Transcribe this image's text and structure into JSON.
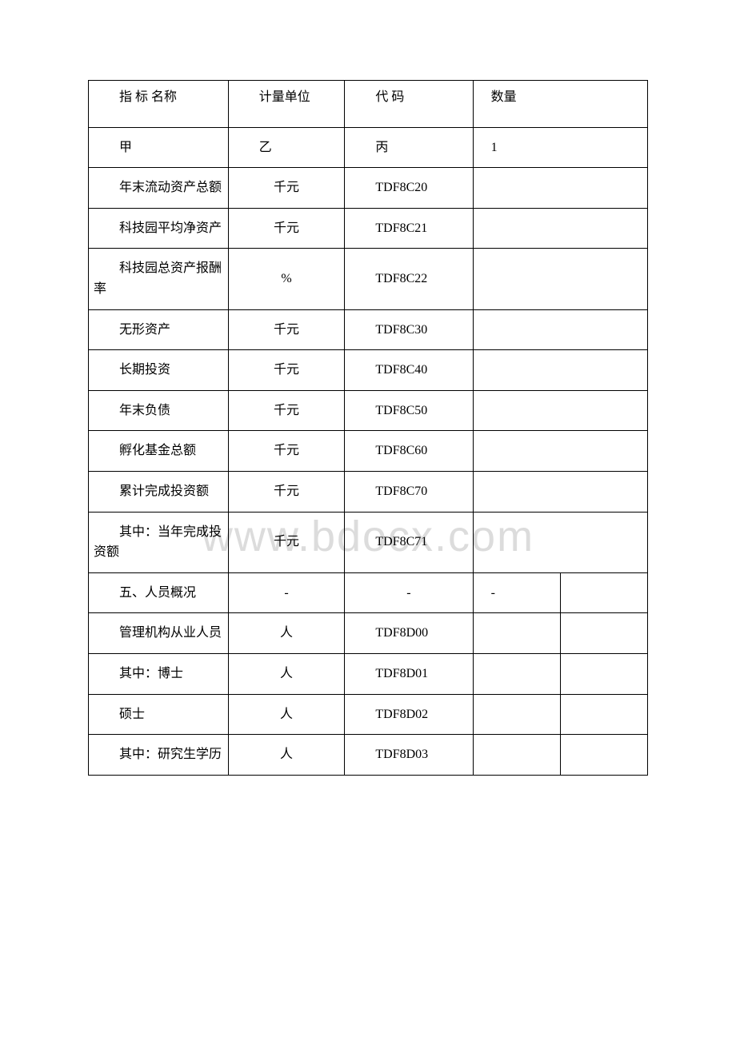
{
  "watermark": "www.bdocx.com",
  "table": {
    "header": {
      "c1": "指 标 名称",
      "c2": "计量单位",
      "c3": "代 码",
      "c4": "数量"
    },
    "subheader": {
      "c1": "甲",
      "c2": "乙",
      "c3": "丙",
      "c4": "1"
    },
    "rows": [
      {
        "name": "年末流动资产总额",
        "unit": "千元",
        "code": "TDF8C20",
        "qty": "",
        "extra": ""
      },
      {
        "name": "科技园平均净资产",
        "unit": "千元",
        "code": "TDF8C21",
        "qty": "",
        "extra": ""
      },
      {
        "name": "科技园总资产报酬率",
        "unit": "%",
        "code": "TDF8C22",
        "qty": "",
        "extra": ""
      },
      {
        "name": "无形资产",
        "unit": "千元",
        "code": "TDF8C30",
        "qty": "",
        "extra": ""
      },
      {
        "name": "长期投资",
        "unit": "千元",
        "code": "TDF8C40",
        "qty": "",
        "extra": ""
      },
      {
        "name": "年末负债",
        "unit": "千元",
        "code": "TDF8C50",
        "qty": "",
        "extra": ""
      },
      {
        "name": "孵化基金总额",
        "unit": "千元",
        "code": "TDF8C60",
        "qty": "",
        "extra": ""
      },
      {
        "name": "累计完成投资额",
        "unit": "千元",
        "code": "TDF8C70",
        "qty": "",
        "extra": ""
      },
      {
        "name": "其中：当年完成投资额",
        "unit": "千元",
        "code": "TDF8C71",
        "qty": "",
        "extra": ""
      },
      {
        "name": "五、人员概况",
        "unit": "-",
        "code": "-",
        "qty": "-",
        "extra": ""
      },
      {
        "name": "管理机构从业人员",
        "unit": "人",
        "code": "TDF8D00",
        "qty": "",
        "extra": ""
      },
      {
        "name": "其中：博士",
        "unit": "人",
        "code": "TDF8D01",
        "qty": "",
        "extra": ""
      },
      {
        "name": "硕士",
        "unit": "人",
        "code": "TDF8D02",
        "qty": "",
        "extra": ""
      },
      {
        "name": "其中：研究生学历",
        "unit": "人",
        "code": "TDF8D03",
        "qty": "",
        "extra": ""
      }
    ]
  },
  "styles": {
    "page_bg": "#ffffff",
    "border_color": "#000000",
    "text_color": "#000000",
    "watermark_color": "#dcdcdc",
    "font_size_body": 16,
    "font_size_watermark": 54
  }
}
